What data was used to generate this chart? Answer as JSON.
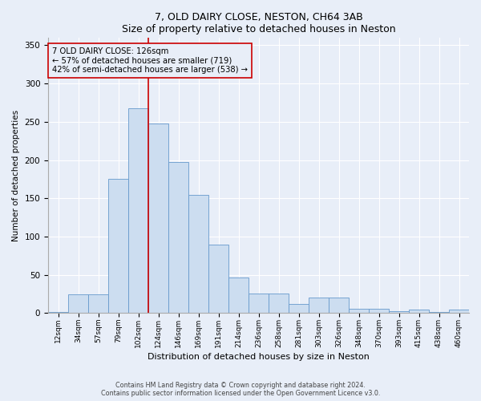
{
  "title1": "7, OLD DAIRY CLOSE, NESTON, CH64 3AB",
  "title2": "Size of property relative to detached houses in Neston",
  "xlabel": "Distribution of detached houses by size in Neston",
  "ylabel": "Number of detached properties",
  "footnote1": "Contains HM Land Registry data © Crown copyright and database right 2024.",
  "footnote2": "Contains public sector information licensed under the Open Government Licence v3.0.",
  "annotation_line1": "7 OLD DAIRY CLOSE: 126sqm",
  "annotation_line2": "← 57% of detached houses are smaller (719)",
  "annotation_line3": "42% of semi-detached houses are larger (538) →",
  "bar_labels": [
    "12sqm",
    "34sqm",
    "57sqm",
    "79sqm",
    "102sqm",
    "124sqm",
    "146sqm",
    "169sqm",
    "191sqm",
    "214sqm",
    "236sqm",
    "258sqm",
    "281sqm",
    "303sqm",
    "326sqm",
    "348sqm",
    "370sqm",
    "393sqm",
    "415sqm",
    "438sqm",
    "460sqm"
  ],
  "bar_heights": [
    2,
    25,
    25,
    175,
    268,
    248,
    197,
    155,
    90,
    47,
    26,
    26,
    12,
    20,
    20,
    6,
    6,
    3,
    5,
    1,
    5
  ],
  "bar_color": "#ccddf0",
  "bar_edge_color": "#6699cc",
  "vline_color": "#cc0000",
  "annotation_box_color": "#cc0000",
  "ylim": [
    0,
    360
  ],
  "bg_color": "#e8eef8",
  "grid_color": "#ffffff",
  "yticks": [
    0,
    50,
    100,
    150,
    200,
    250,
    300,
    350
  ]
}
